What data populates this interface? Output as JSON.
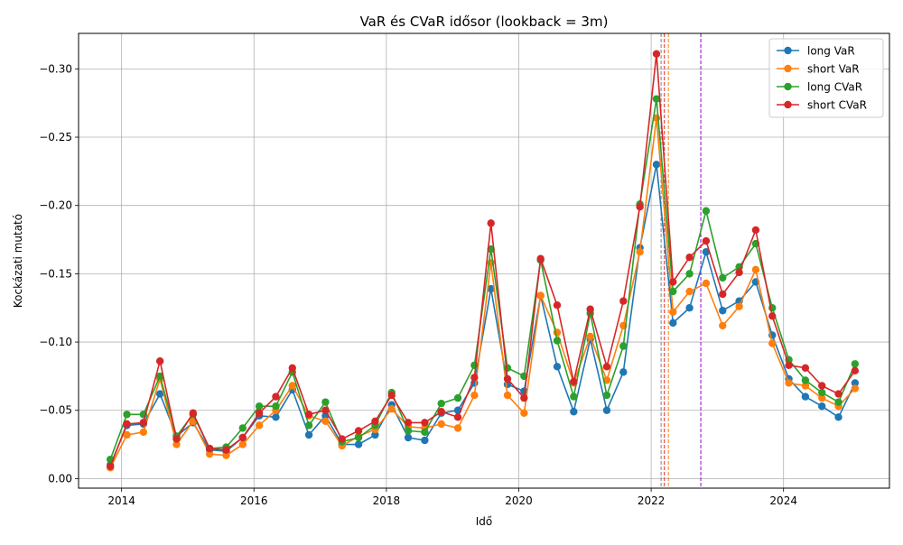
{
  "chart_data": {
    "type": "line",
    "title": "VaR és CVaR idősor (lookback = 3m)",
    "xlabel": "Idő",
    "ylabel": "Kockázati mutató",
    "x": [
      2013.83,
      2014.08,
      2014.33,
      2014.58,
      2014.83,
      2015.08,
      2015.33,
      2015.58,
      2015.83,
      2016.08,
      2016.33,
      2016.58,
      2016.83,
      2017.08,
      2017.33,
      2017.58,
      2017.83,
      2018.08,
      2018.33,
      2018.58,
      2018.83,
      2019.08,
      2019.33,
      2019.58,
      2019.83,
      2020.08,
      2020.33,
      2020.58,
      2020.83,
      2021.08,
      2021.33,
      2021.58,
      2021.83,
      2022.08,
      2022.33,
      2022.58,
      2022.83,
      2023.08,
      2023.33,
      2023.58,
      2023.83,
      2024.08,
      2024.33,
      2024.58,
      2024.83,
      2025.08
    ],
    "xlim": [
      2013.35,
      2025.6
    ],
    "ylim": [
      0.007,
      -0.326
    ],
    "xticks": [
      2014,
      2016,
      2018,
      2020,
      2022,
      2024
    ],
    "xtick_labels": [
      "2014",
      "2016",
      "2018",
      "2020",
      "2022",
      "2024"
    ],
    "yticks": [
      0.0,
      -0.05,
      -0.1,
      -0.15,
      -0.2,
      -0.25,
      -0.3
    ],
    "ytick_labels": [
      "0.00",
      "−0.05",
      "−0.10",
      "−0.15",
      "−0.20",
      "−0.25",
      "−0.30"
    ],
    "grid": true,
    "legend_position": "top-right",
    "series": [
      {
        "name": "long VaR",
        "color": "#1f77b4",
        "values": [
          -0.01,
          -0.039,
          -0.04,
          -0.062,
          -0.031,
          -0.041,
          -0.021,
          -0.02,
          -0.03,
          -0.046,
          -0.045,
          -0.065,
          -0.032,
          -0.046,
          -0.025,
          -0.025,
          -0.032,
          -0.054,
          -0.03,
          -0.028,
          -0.048,
          -0.05,
          -0.07,
          -0.139,
          -0.069,
          -0.064,
          -0.134,
          -0.082,
          -0.049,
          -0.102,
          -0.05,
          -0.078,
          -0.169,
          -0.23,
          -0.114,
          -0.125,
          -0.166,
          -0.123,
          -0.13,
          -0.144,
          -0.105,
          -0.073,
          -0.06,
          -0.053,
          -0.045,
          -0.07
        ]
      },
      {
        "name": "short VaR",
        "color": "#ff7f0e",
        "values": [
          -0.008,
          -0.032,
          -0.034,
          -0.073,
          -0.025,
          -0.042,
          -0.018,
          -0.017,
          -0.025,
          -0.039,
          -0.05,
          -0.068,
          -0.046,
          -0.042,
          -0.024,
          -0.031,
          -0.036,
          -0.051,
          -0.038,
          -0.037,
          -0.04,
          -0.037,
          -0.061,
          -0.158,
          -0.061,
          -0.048,
          -0.134,
          -0.107,
          -0.07,
          -0.104,
          -0.072,
          -0.112,
          -0.166,
          -0.264,
          -0.122,
          -0.137,
          -0.143,
          -0.112,
          -0.126,
          -0.153,
          -0.099,
          -0.07,
          -0.068,
          -0.059,
          -0.053,
          -0.066
        ]
      },
      {
        "name": "long CVaR",
        "color": "#2ca02c",
        "values": [
          -0.014,
          -0.047,
          -0.047,
          -0.075,
          -0.031,
          -0.047,
          -0.022,
          -0.023,
          -0.037,
          -0.053,
          -0.053,
          -0.078,
          -0.039,
          -0.056,
          -0.027,
          -0.03,
          -0.039,
          -0.063,
          -0.035,
          -0.034,
          -0.055,
          -0.059,
          -0.083,
          -0.168,
          -0.081,
          -0.075,
          -0.16,
          -0.101,
          -0.06,
          -0.121,
          -0.061,
          -0.097,
          -0.201,
          -0.278,
          -0.137,
          -0.15,
          -0.196,
          -0.147,
          -0.155,
          -0.172,
          -0.125,
          -0.087,
          -0.072,
          -0.063,
          -0.056,
          -0.084
        ]
      },
      {
        "name": "short CVaR",
        "color": "#d62728",
        "values": [
          -0.009,
          -0.04,
          -0.041,
          -0.086,
          -0.029,
          -0.048,
          -0.022,
          -0.021,
          -0.03,
          -0.048,
          -0.06,
          -0.081,
          -0.047,
          -0.05,
          -0.029,
          -0.035,
          -0.042,
          -0.061,
          -0.041,
          -0.041,
          -0.049,
          -0.045,
          -0.074,
          -0.187,
          -0.073,
          -0.059,
          -0.161,
          -0.127,
          -0.071,
          -0.124,
          -0.082,
          -0.13,
          -0.199,
          -0.311,
          -0.144,
          -0.162,
          -0.174,
          -0.135,
          -0.151,
          -0.182,
          -0.119,
          -0.083,
          -0.081,
          -0.068,
          -0.062,
          -0.079
        ]
      }
    ],
    "vlines": [
      {
        "x": 2022.15,
        "color": "#808080"
      },
      {
        "x": 2022.2,
        "color": "#d62728"
      },
      {
        "x": 2022.26,
        "color": "#ff7f0e"
      },
      {
        "x": 2022.75,
        "color": "#9400d3"
      }
    ]
  }
}
